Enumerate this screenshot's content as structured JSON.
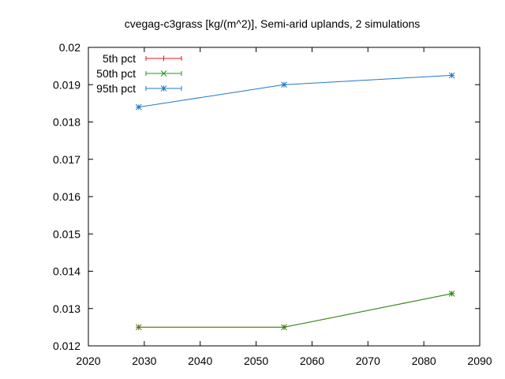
{
  "chart_data": {
    "type": "line",
    "title": "cvegag-c3grass [kg/(m^2)], Semi-arid uplands, 2 simulations",
    "xlabel": "",
    "ylabel": "",
    "xlim": [
      2020,
      2090
    ],
    "ylim": [
      0.012,
      0.02
    ],
    "x_ticks": [
      "2020",
      "2030",
      "2040",
      "2050",
      "2060",
      "2070",
      "2080",
      "2090"
    ],
    "y_ticks": [
      "0.012",
      "0.013",
      "0.014",
      "0.015",
      "0.016",
      "0.017",
      "0.018",
      "0.019",
      "0.02"
    ],
    "legend_position": "top-left",
    "grid": false,
    "series": [
      {
        "name": "5th pct",
        "color": "#e41a1c",
        "marker": "plus",
        "x": [
          2029,
          2055,
          2085
        ],
        "y": [
          0.0125,
          0.0125,
          0.0134
        ]
      },
      {
        "name": "50th pct",
        "color": "#1a9a1a",
        "marker": "cross",
        "x": [
          2029,
          2055,
          2085
        ],
        "y": [
          0.0125,
          0.0125,
          0.0134
        ]
      },
      {
        "name": "95th pct",
        "color": "#1f78c8",
        "marker": "star",
        "x": [
          2029,
          2055,
          2085
        ],
        "y": [
          0.0184,
          0.019,
          0.01925
        ]
      }
    ]
  }
}
